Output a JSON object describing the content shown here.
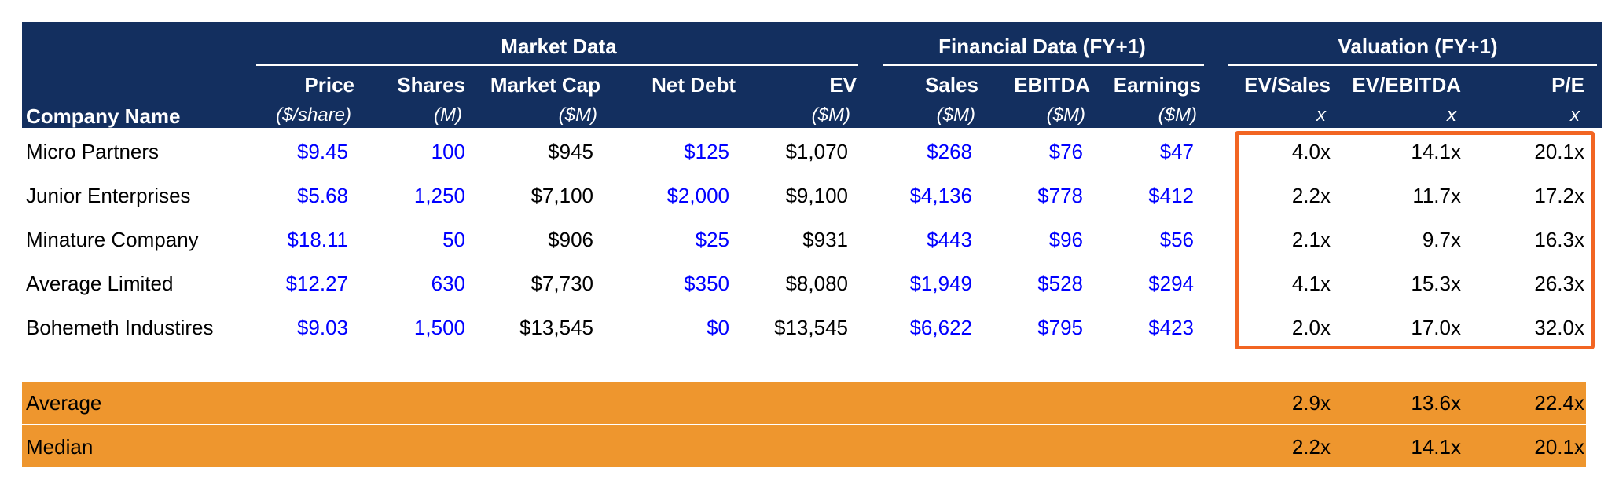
{
  "groups": {
    "market": "Market Data",
    "financial": "Financial Data (FY+1)",
    "valuation": "Valuation (FY+1)"
  },
  "columns": {
    "company": "Company Name",
    "price": {
      "label": "Price",
      "unit": "($/share)"
    },
    "shares": {
      "label": "Shares",
      "unit": "(M)"
    },
    "mcap": {
      "label": "Market Cap",
      "unit": "($M)"
    },
    "netdebt": {
      "label": "Net Debt",
      "unit": ""
    },
    "ev": {
      "label": "EV",
      "unit": "($M)"
    },
    "sales": {
      "label": "Sales",
      "unit": "($M)"
    },
    "ebitda": {
      "label": "EBITDA",
      "unit": "($M)"
    },
    "earnings": {
      "label": "Earnings",
      "unit": "($M)"
    },
    "evsales": {
      "label": "EV/Sales",
      "unit": "x"
    },
    "evebitda": {
      "label": "EV/EBITDA",
      "unit": "x"
    },
    "pe": {
      "label": "P/E",
      "unit": "x"
    }
  },
  "rows": [
    {
      "name": "Micro Partners",
      "price": "$9.45",
      "shares": "100",
      "mcap": "$945",
      "netdebt": "$125",
      "ev": "$1,070",
      "sales": "$268",
      "ebitda": "$76",
      "earnings": "$47",
      "evsales": "4.0x",
      "evebitda": "14.1x",
      "pe": "20.1x"
    },
    {
      "name": "Junior Enterprises",
      "price": "$5.68",
      "shares": "1,250",
      "mcap": "$7,100",
      "netdebt": "$2,000",
      "ev": "$9,100",
      "sales": "$4,136",
      "ebitda": "$778",
      "earnings": "$412",
      "evsales": "2.2x",
      "evebitda": "11.7x",
      "pe": "17.2x"
    },
    {
      "name": "Minature Company",
      "price": "$18.11",
      "shares": "50",
      "mcap": "$906",
      "netdebt": "$25",
      "ev": "$931",
      "sales": "$443",
      "ebitda": "$96",
      "earnings": "$56",
      "evsales": "2.1x",
      "evebitda": "9.7x",
      "pe": "16.3x"
    },
    {
      "name": "Average Limited",
      "price": "$12.27",
      "shares": "630",
      "mcap": "$7,730",
      "netdebt": "$350",
      "ev": "$8,080",
      "sales": "$1,949",
      "ebitda": "$528",
      "earnings": "$294",
      "evsales": "4.1x",
      "evebitda": "15.3x",
      "pe": "26.3x"
    },
    {
      "name": "Bohemeth Industires",
      "price": "$9.03",
      "shares": "1,500",
      "mcap": "$13,545",
      "netdebt": "$0",
      "ev": "$13,545",
      "sales": "$6,622",
      "ebitda": "$795",
      "earnings": "$423",
      "evsales": "2.0x",
      "evebitda": "17.0x",
      "pe": "32.0x"
    }
  ],
  "summary": [
    {
      "label": "Average",
      "evsales": "2.9x",
      "evebitda": "13.6x",
      "pe": "22.4x"
    },
    {
      "label": "Median",
      "evsales": "2.2x",
      "evebitda": "14.1x",
      "pe": "20.1x"
    }
  ],
  "colors": {
    "header_bg": "#132F5F",
    "input_text": "#0000FF",
    "summary_bg": "#EE962E",
    "highlight_border": "#F26522"
  }
}
